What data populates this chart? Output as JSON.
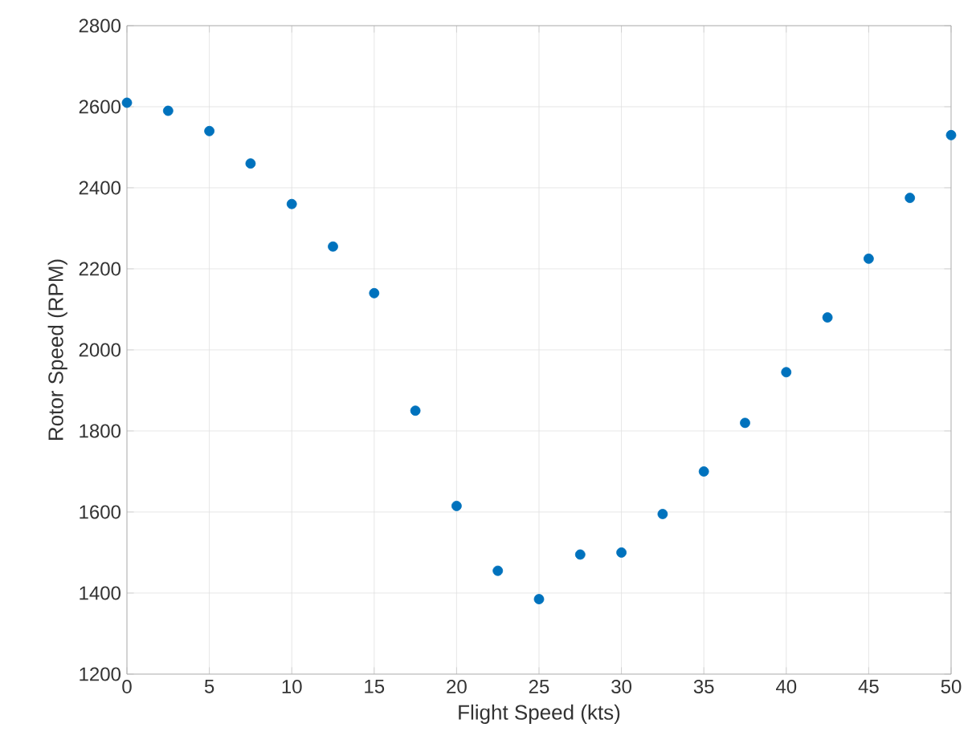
{
  "chart_data": {
    "type": "scatter",
    "xlabel": "Flight Speed (kts)",
    "ylabel": "Rotor Speed (RPM)",
    "x": [
      0,
      2.5,
      5,
      7.5,
      10,
      12.5,
      15,
      17.5,
      20,
      22.5,
      25,
      27.5,
      30,
      32.5,
      35,
      37.5,
      40,
      42.5,
      45,
      47.5,
      50
    ],
    "values": [
      2610,
      2590,
      2540,
      2460,
      2360,
      2255,
      2140,
      1850,
      1615,
      1455,
      1385,
      1495,
      1500,
      1595,
      1700,
      1820,
      1945,
      2080,
      2225,
      2375,
      2530
    ],
    "color": "#0072bd",
    "marker": "circle",
    "xlim": [
      0,
      50
    ],
    "ylim": [
      1200,
      2800
    ],
    "xticks": [
      0,
      5,
      10,
      15,
      20,
      25,
      30,
      35,
      40,
      45,
      50
    ],
    "yticks": [
      1200,
      1400,
      1600,
      1800,
      2000,
      2200,
      2400,
      2600,
      2800
    ],
    "grid": true
  }
}
